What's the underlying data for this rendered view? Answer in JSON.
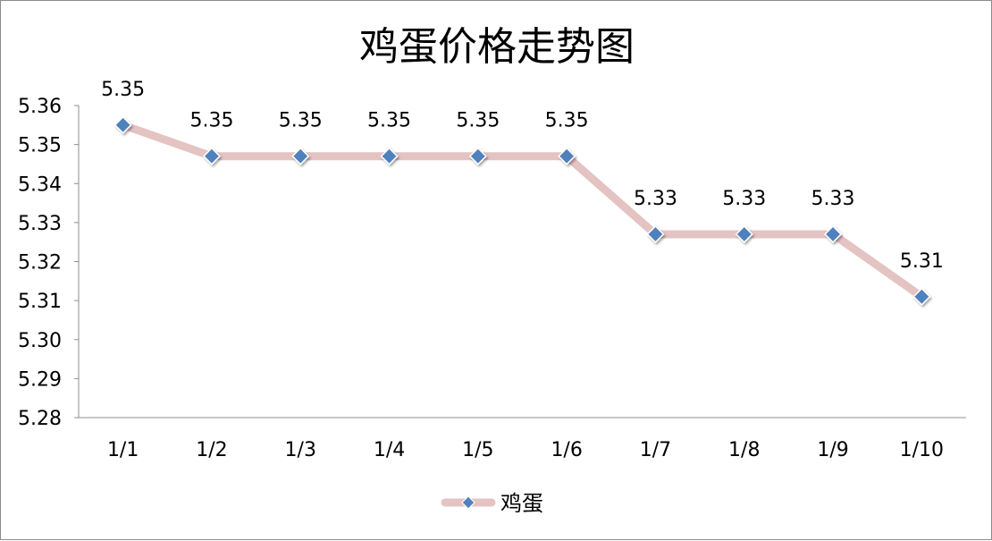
{
  "chart_data": {
    "type": "line",
    "title": "鸡蛋价格走势图",
    "categories": [
      "1/1",
      "1/2",
      "1/3",
      "1/4",
      "1/5",
      "1/6",
      "1/7",
      "1/8",
      "1/9",
      "1/10"
    ],
    "series": [
      {
        "name": "鸡蛋",
        "values": [
          5.355,
          5.347,
          5.347,
          5.347,
          5.347,
          5.347,
          5.327,
          5.327,
          5.327,
          5.311
        ],
        "data_labels": [
          "5.35",
          "5.35",
          "5.35",
          "5.35",
          "5.35",
          "5.35",
          "5.33",
          "5.33",
          "5.33",
          "5.31"
        ],
        "line_color": "#e4c3c3",
        "marker_color": "#4f81bd",
        "marker": "diamond"
      }
    ],
    "ylim": [
      5.28,
      5.36
    ],
    "yticks": [
      "5.28",
      "5.29",
      "5.30",
      "5.31",
      "5.32",
      "5.33",
      "5.34",
      "5.35",
      "5.36"
    ],
    "xlabel": "",
    "ylabel": "",
    "grid": false,
    "legend_position": "bottom"
  }
}
